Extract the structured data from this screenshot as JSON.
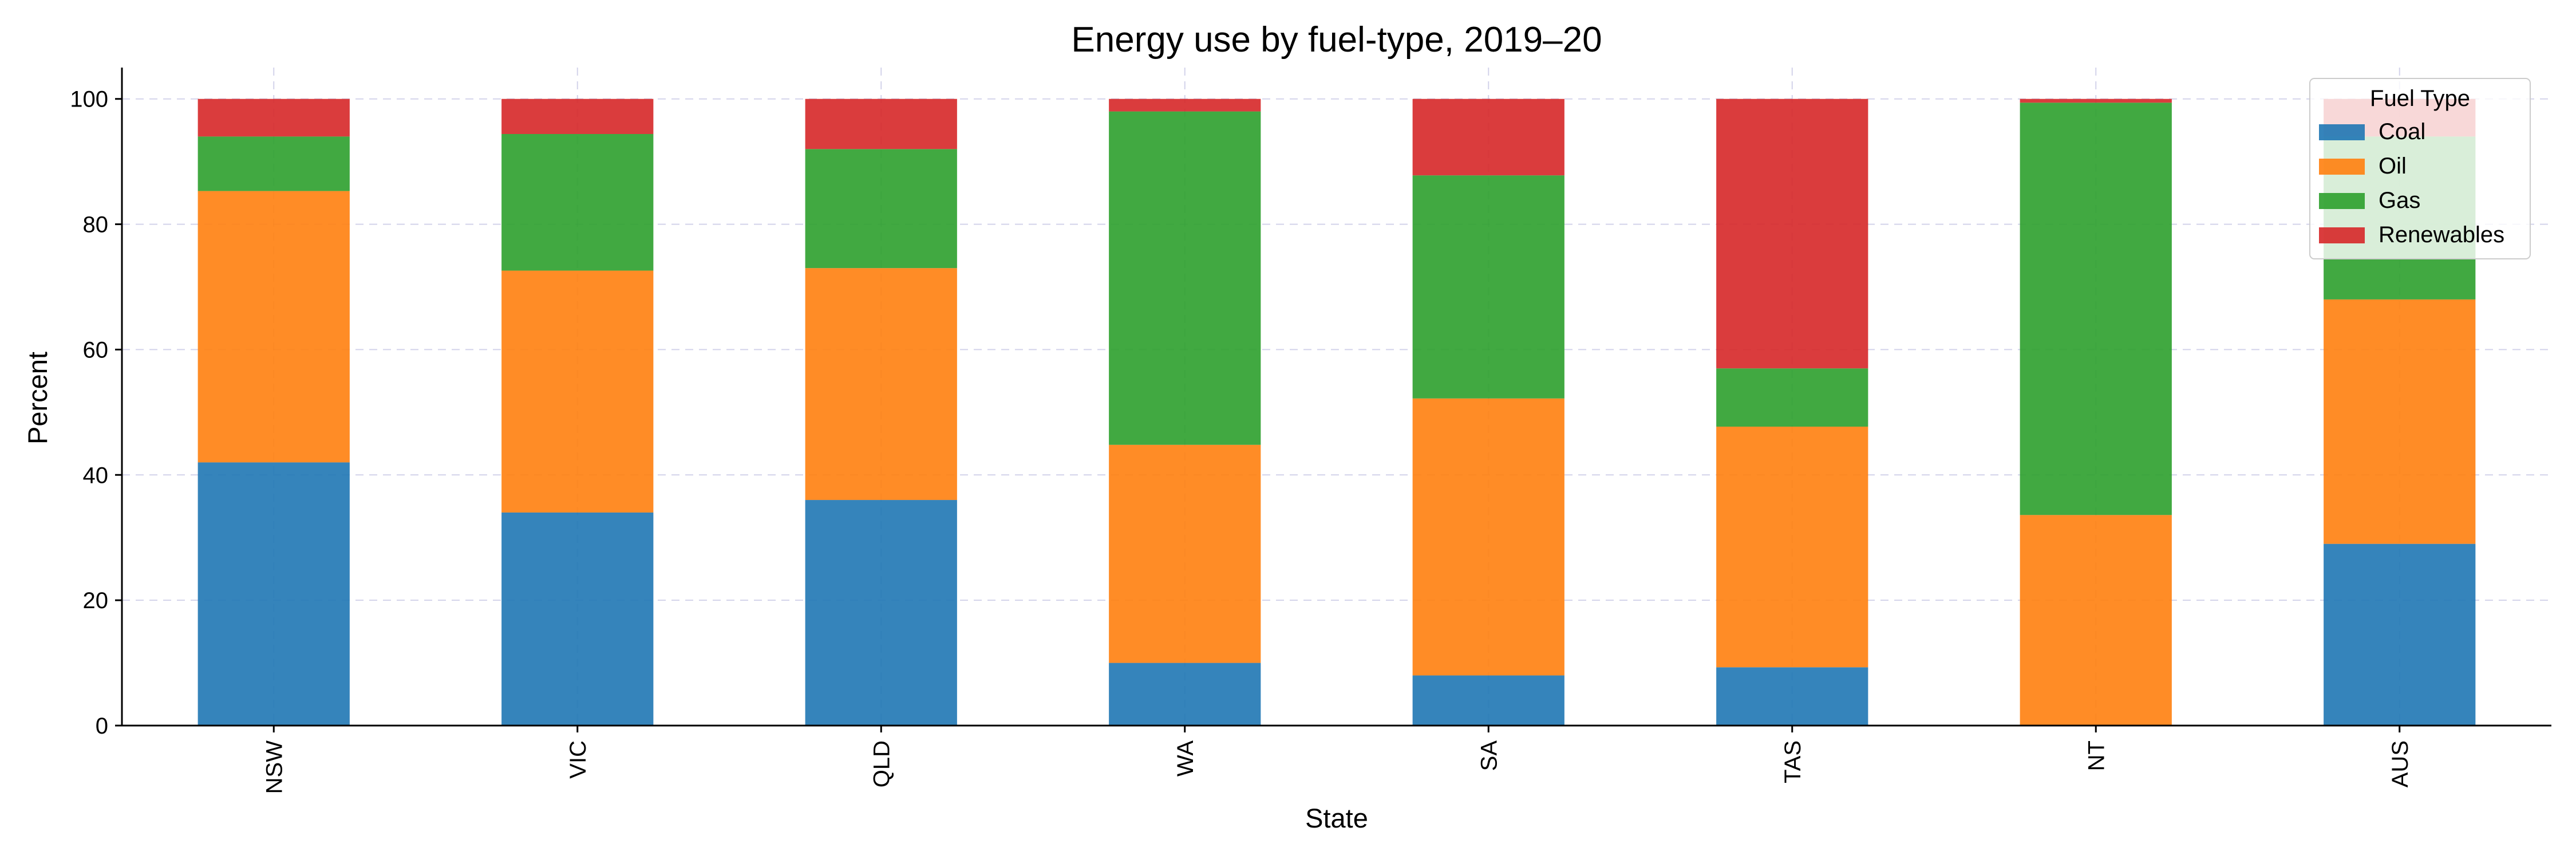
{
  "chart_data": {
    "type": "bar",
    "stacked": true,
    "title": "Energy use by fuel-type, 2019–20",
    "xlabel": "State",
    "ylabel": "Percent",
    "categories": [
      "NSW",
      "VIC",
      "QLD",
      "WA",
      "SA",
      "TAS",
      "NT",
      "AUS"
    ],
    "ylim": [
      0,
      105
    ],
    "yticks": [
      0,
      20,
      40,
      60,
      80,
      100
    ],
    "grid": true,
    "legend": {
      "title": "Fuel Type",
      "placement": "top-right"
    },
    "series": [
      {
        "name": "Coal",
        "color": "#1f77b4",
        "values": [
          42.0,
          34.0,
          36.0,
          10.0,
          8.0,
          9.3,
          0.0,
          29.0
        ]
      },
      {
        "name": "Oil",
        "color": "#ff7f0e",
        "values": [
          43.3,
          38.6,
          37.0,
          34.8,
          44.2,
          38.4,
          33.6,
          39.0
        ]
      },
      {
        "name": "Gas",
        "color": "#2ca02c",
        "values": [
          8.7,
          21.8,
          19.0,
          53.2,
          35.6,
          9.3,
          65.8,
          26.0
        ]
      },
      {
        "name": "Renewables",
        "color": "#d62728",
        "values": [
          6.0,
          5.6,
          8.0,
          2.0,
          12.2,
          43.0,
          0.6,
          6.0
        ]
      }
    ]
  }
}
